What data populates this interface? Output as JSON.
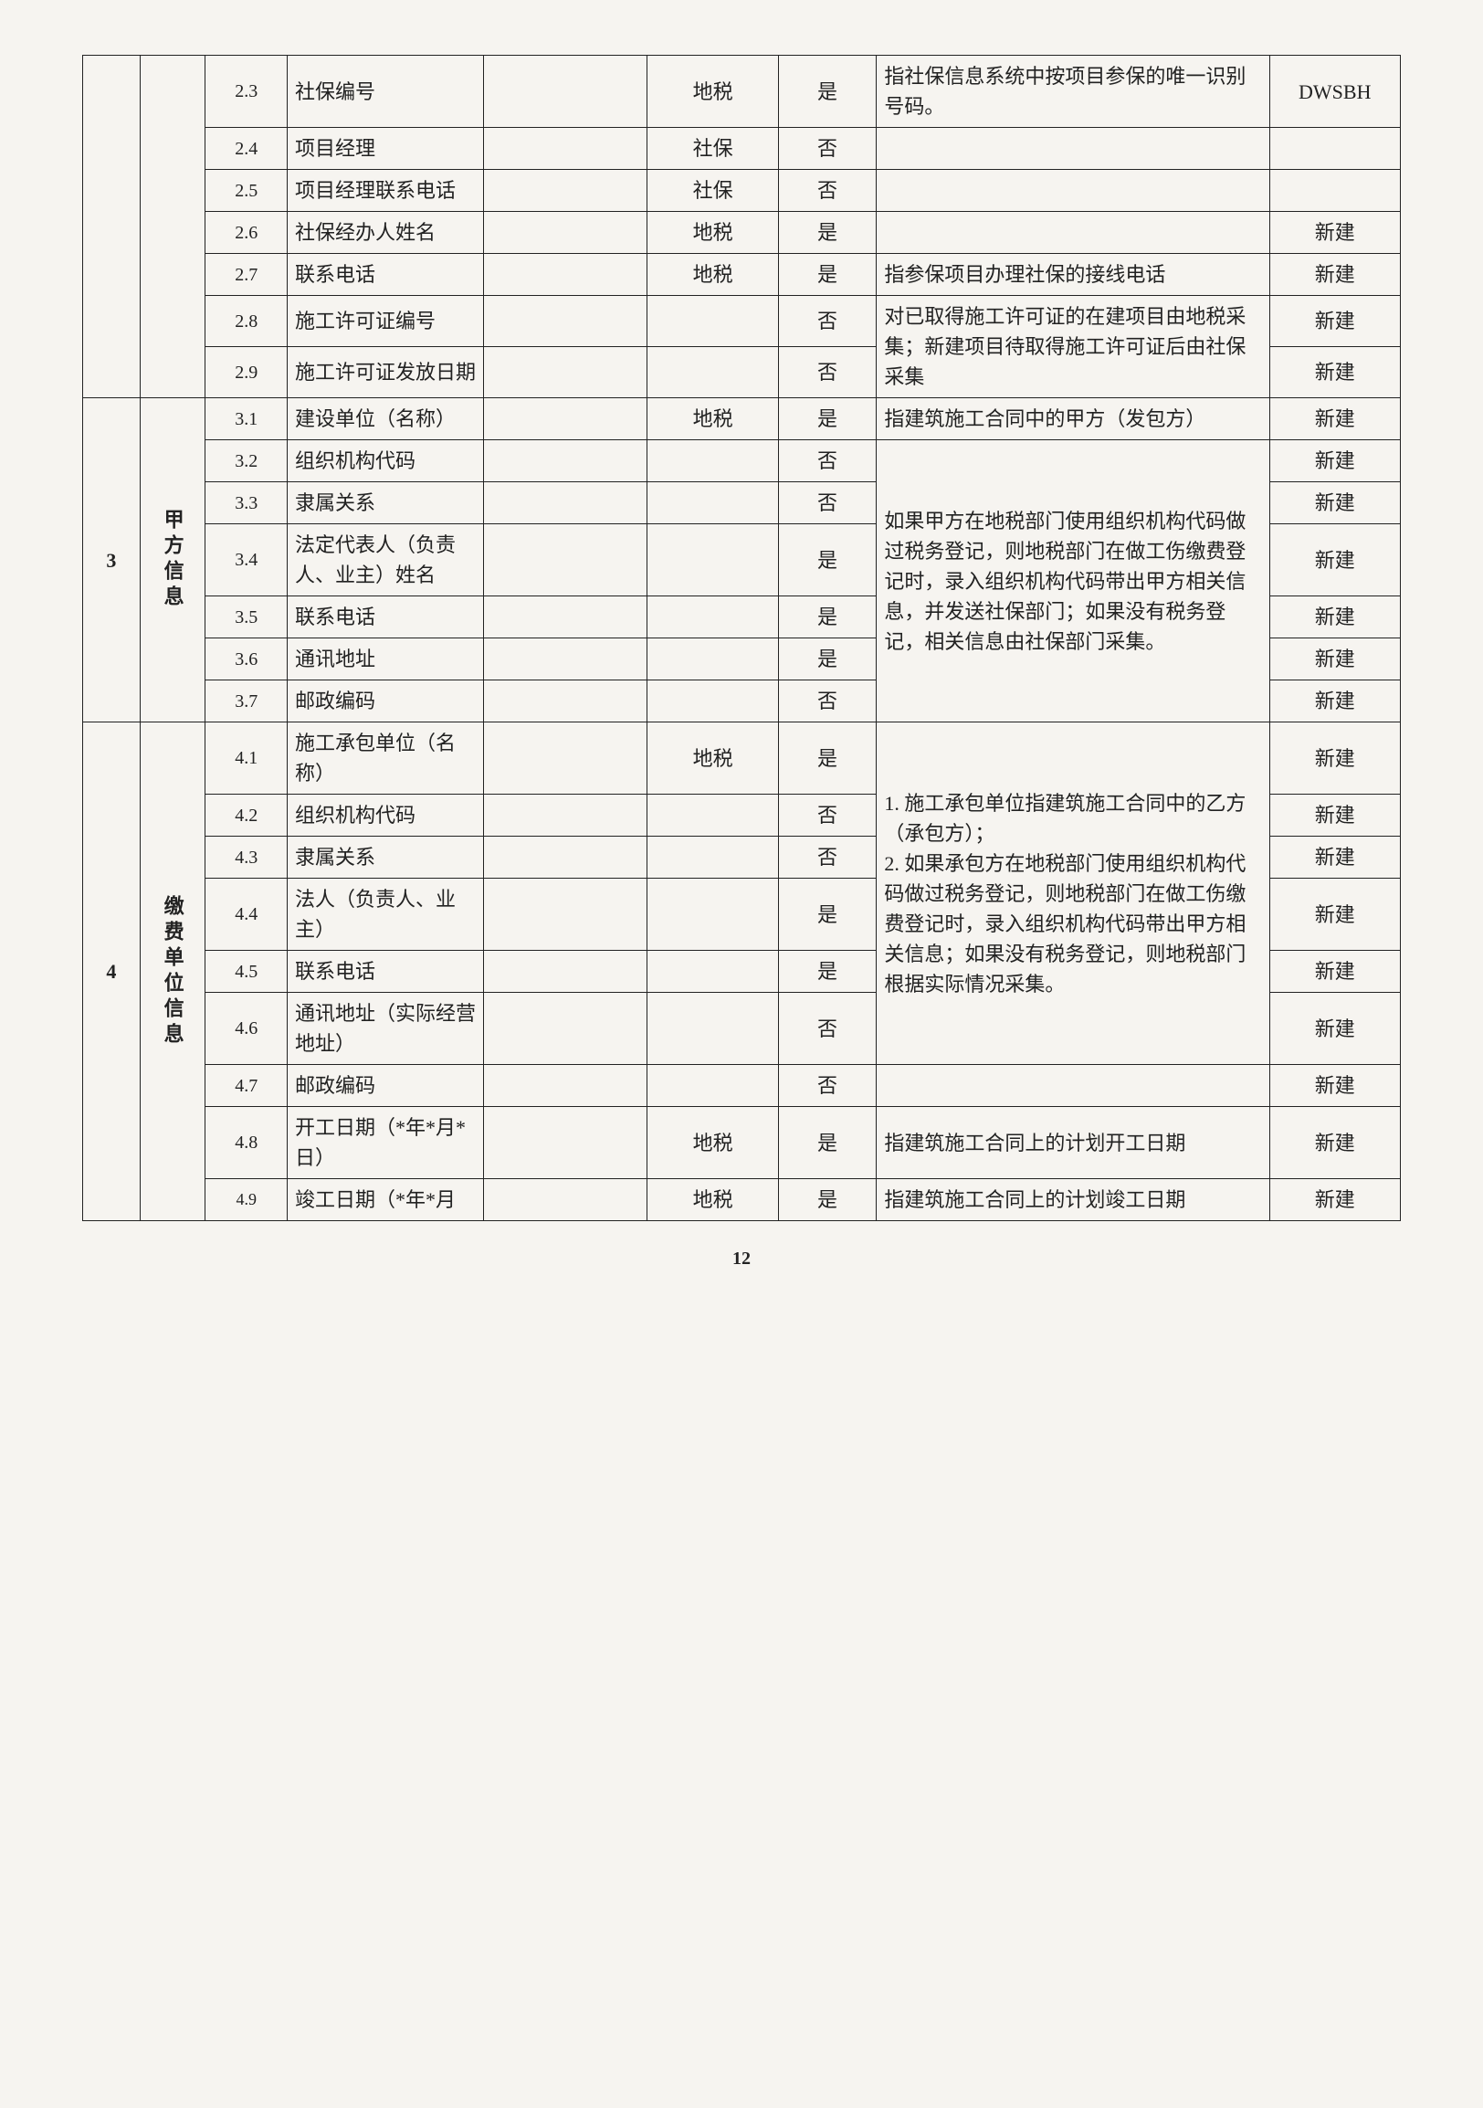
{
  "page_number": "12",
  "section2": {
    "rows": [
      {
        "n": "2.3",
        "name": "社保编号",
        "c5": "",
        "c6": "地税",
        "c7": "是",
        "desc": "指社保信息系统中按项目参保的唯一识别号码。",
        "c9": "DWSBH"
      },
      {
        "n": "2.4",
        "name": "项目经理",
        "c5": "",
        "c6": "社保",
        "c7": "否",
        "desc": "",
        "c9": ""
      },
      {
        "n": "2.5",
        "name": "项目经理联系电话",
        "c5": "",
        "c6": "社保",
        "c7": "否",
        "desc": "",
        "c9": ""
      },
      {
        "n": "2.6",
        "name": "社保经办人姓名",
        "c5": "",
        "c6": "地税",
        "c7": "是",
        "desc": "",
        "c9": "新建"
      },
      {
        "n": "2.7",
        "name": "联系电话",
        "c5": "",
        "c6": "地税",
        "c7": "是",
        "desc": "指参保项目办理社保的接线电话",
        "c9": "新建"
      }
    ],
    "r28": {
      "n": "2.8",
      "name": "施工许可证编号",
      "c5": "",
      "c6": "",
      "c7": "否",
      "c9": "新建"
    },
    "r29": {
      "n": "2.9",
      "name": "施工许可证发放日期",
      "c5": "",
      "c6": "",
      "c7": "否",
      "c9": "新建"
    },
    "desc2829": "对已取得施工许可证的在建项目由地税采集；新建项目待取得施工许可证后由社保采集"
  },
  "section3": {
    "idx": "3",
    "label": "甲方信息",
    "r31": {
      "n": "3.1",
      "name": "建设单位（名称）",
      "c5": "",
      "c6": "地税",
      "c7": "是",
      "desc": "指建筑施工合同中的甲方（发包方）",
      "c9": "新建"
    },
    "r32": {
      "n": "3.2",
      "name": "组织机构代码",
      "c5": "",
      "c6": "",
      "c7": "否",
      "c9": "新建"
    },
    "r33": {
      "n": "3.3",
      "name": "隶属关系",
      "c5": "",
      "c6": "",
      "c7": "否",
      "c9": "新建"
    },
    "r34": {
      "n": "3.4",
      "name": "法定代表人（负责人、业主）姓名",
      "c5": "",
      "c6": "",
      "c7": "是",
      "c9": "新建"
    },
    "r35": {
      "n": "3.5",
      "name": "联系电话",
      "c5": "",
      "c6": "",
      "c7": "是",
      "c9": "新建"
    },
    "r36": {
      "n": "3.6",
      "name": "通讯地址",
      "c5": "",
      "c6": "",
      "c7": "是",
      "c9": "新建"
    },
    "r37": {
      "n": "3.7",
      "name": "邮政编码",
      "c5": "",
      "c6": "",
      "c7": "否",
      "c9": "新建"
    },
    "desc32_37": "如果甲方在地税部门使用组织机构代码做过税务登记，则地税部门在做工伤缴费登记时，录入组织机构代码带出甲方相关信息，并发送社保部门；如果没有税务登记，相关信息由社保部门采集。"
  },
  "section4": {
    "idx": "4",
    "label": "缴费单位信息",
    "r41": {
      "n": "4.1",
      "name": "施工承包单位（名称）",
      "c5": "",
      "c6": "地税",
      "c7": "是",
      "c9": "新建"
    },
    "r42": {
      "n": "4.2",
      "name": "组织机构代码",
      "c5": "",
      "c6": "",
      "c7": "否",
      "c9": "新建"
    },
    "r43": {
      "n": "4.3",
      "name": "隶属关系",
      "c5": "",
      "c6": "",
      "c7": "否",
      "c9": "新建"
    },
    "r44": {
      "n": "4.4",
      "name": "法人（负责人、业主）",
      "c5": "",
      "c6": "",
      "c7": "是",
      "c9": "新建"
    },
    "r45": {
      "n": "4.5",
      "name": "联系电话",
      "c5": "",
      "c6": "",
      "c7": "是",
      "c9": "新建"
    },
    "r46": {
      "n": "4.6",
      "name": "通讯地址（实际经营地址）",
      "c5": "",
      "c6": "",
      "c7": "否",
      "c9": "新建"
    },
    "r47": {
      "n": "4.7",
      "name": "邮政编码",
      "c5": "",
      "c6": "",
      "c7": "否",
      "desc": "",
      "c9": "新建"
    },
    "desc41_46": "1. 施工承包单位指建筑施工合同中的乙方（承包方）；\n2. 如果承包方在地税部门使用组织机构代码做过税务登记，则地税部门在做工伤缴费登记时，录入组织机构代码带出甲方相关信息；如果没有税务登记，则地税部门根据实际情况采集。",
    "r48": {
      "n": "4.8",
      "name": "开工日期（*年*月*日）",
      "c5": "",
      "c6": "地税",
      "c7": "是",
      "desc": "指建筑施工合同上的计划开工日期",
      "c9": "新建"
    },
    "r49": {
      "n": "4.9",
      "name": "竣工日期（*年*月",
      "c5": "",
      "c6": "地税",
      "c7": "是",
      "desc": "指建筑施工合同上的计划竣工日期",
      "c9": "新建"
    }
  }
}
